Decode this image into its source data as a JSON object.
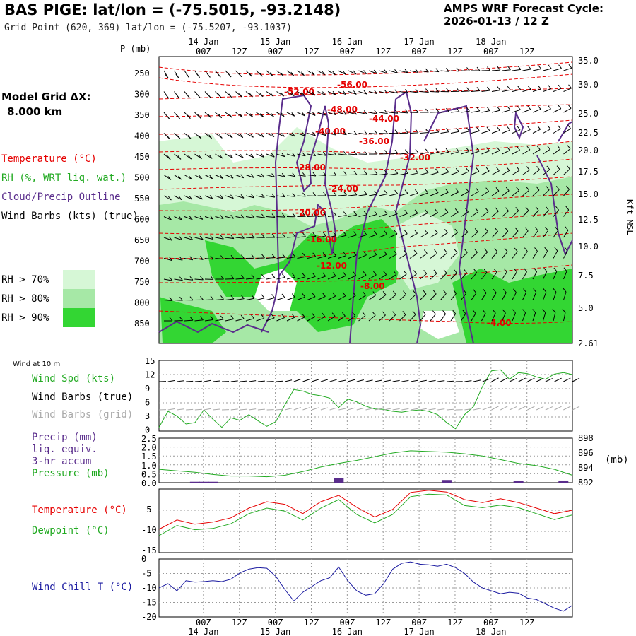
{
  "header": {
    "title": "BAS PIGE:  lat/lon = (-75.5015, -93.2148)",
    "subtitle": "Grid Point (620, 369) lat/lon = (-75.5207, -93.1037)",
    "cycle_line1": "AMPS WRF Forecast Cycle:",
    "cycle_line2": "2026-01-13 / 12  Z"
  },
  "left_panel": {
    "grid_line1": "Model Grid ΔX:",
    "grid_line2": "8.000 km",
    "temperature": "Temperature (°C)",
    "rh": "RH (%, WRT liq. wat.)",
    "cloud": "Cloud/Precip Outline",
    "wind": "Wind Barbs (kts) (true)",
    "rh70": "RH > 70%",
    "rh80": "RH > 80%",
    "rh90": "RH > 90%"
  },
  "colors": {
    "rh70": "#d6f7d6",
    "rh80": "#a6e8a6",
    "rh90": "#33d633",
    "temp": "#e60000",
    "cloud": "#5a2d8c",
    "dew": "#22aa22",
    "chill": "#1a1aa0"
  },
  "time_axis": {
    "date_labels": [
      "14 Jan",
      "15 Jan",
      "16 Jan",
      "17 Jan",
      "18 Jan"
    ],
    "hour_labels": [
      "00Z",
      "12Z",
      "00Z",
      "12Z",
      "00Z",
      "12Z",
      "00Z",
      "12Z",
      "00Z",
      "12Z"
    ]
  },
  "main_panel": {
    "p_label": "P (mb)",
    "right_label": "Kft MSL",
    "pressure_ticks": [
      "250",
      "300",
      "350",
      "400",
      "450",
      "500",
      "550",
      "600",
      "650",
      "700",
      "750",
      "800",
      "850"
    ],
    "height_ticks": [
      "35.0",
      "30.0",
      "25.0",
      "22.5",
      "20.0",
      "17.5",
      "15.0",
      "12.5",
      "10.0",
      "7.5",
      "5.0",
      "2.61"
    ],
    "temp_contour_labels": [
      "-56.00",
      "-52.00",
      "-48.00",
      "-44.00",
      "-40.00",
      "-36.00",
      "-32.00",
      "-28.00",
      "-24.00",
      "-20.00",
      "-16.00",
      "-12.00",
      "-8.00",
      "-4.00"
    ]
  },
  "wind_panel": {
    "title": "Wind at 10 m",
    "spd_label": "Wind Spd (kts)",
    "barbs_true": "Wind Barbs (true)",
    "barbs_grid": "Wind Barbs (grid)",
    "yticks": [
      "15",
      "12",
      "9",
      "6",
      "3",
      "0"
    ]
  },
  "precip_panel": {
    "l1": "Precip (mm)",
    "l2": "liq. equiv.",
    "l3": "3-hr accum",
    "l4": "Pressure (mb)",
    "left_ticks": [
      "2.5",
      "2.0",
      "1.5",
      "1.0",
      "0.5",
      "0.0"
    ],
    "right_ticks": [
      "898",
      "896",
      "894",
      "892"
    ],
    "right_unit": "(mb)"
  },
  "temp_panel": {
    "temp_label": "Temperature (°C)",
    "dew_label": "Dewpoint (°C)",
    "yticks": [
      "-5",
      "-10",
      "-15"
    ]
  },
  "chill_panel": {
    "label": "Wind Chill T (°C)",
    "yticks": [
      "0",
      "-5",
      "-10",
      "-15",
      "-20"
    ]
  },
  "chart_data": [
    {
      "type": "line",
      "title": "Wind at 10 m",
      "x_hours": [
        -12,
        -9,
        -6,
        -3,
        0,
        3,
        6,
        9,
        12,
        15,
        18,
        21,
        24,
        27,
        30,
        33,
        36,
        39,
        42,
        45,
        48,
        51,
        54,
        57,
        60,
        63,
        66,
        69,
        72,
        75,
        78,
        81,
        84,
        87,
        90,
        93,
        96,
        99,
        102,
        105,
        108,
        111,
        114,
        117,
        120,
        123,
        126
      ],
      "series": [
        {
          "name": "Wind Spd (kts)",
          "values": [
            0.8,
            4.2,
            3.2,
            1.5,
            1.8,
            4.5,
            2.5,
            0.8,
            2.8,
            2.3,
            3.5,
            2.2,
            1.0,
            2.0,
            5.5,
            8.8,
            8.5,
            7.8,
            7.5,
            7.0,
            5.0,
            6.8,
            6.2,
            5.3,
            4.7,
            4.6,
            4.2,
            4.0,
            4.3,
            4.5,
            4.2,
            3.5,
            1.8,
            0.5,
            3.5,
            5.2,
            9.5,
            12.8,
            13.0,
            11.0,
            12.4,
            12.2,
            11.5,
            11.0,
            12.1,
            12.4,
            12.0
          ]
        }
      ],
      "ylim": [
        0,
        15
      ]
    },
    {
      "type": "bar",
      "title": "Precip (mm) liq. equiv. 3-hr accum",
      "x_hours": [
        0,
        3,
        6,
        48,
        84,
        108,
        123
      ],
      "values": [
        0.05,
        0.05,
        0.05,
        0.25,
        0.15,
        0.1,
        0.12
      ],
      "ylim": [
        0,
        2.5
      ]
    },
    {
      "type": "line",
      "title": "Pressure (mb)",
      "x_hours": [
        -12,
        -6,
        0,
        6,
        12,
        18,
        24,
        30,
        36,
        42,
        48,
        54,
        60,
        66,
        72,
        78,
        84,
        90,
        96,
        102,
        108,
        114,
        120,
        126
      ],
      "values": [
        893.8,
        893.6,
        893.4,
        893.1,
        892.9,
        892.9,
        892.8,
        893.0,
        893.5,
        894.1,
        894.6,
        895.0,
        895.5,
        896.0,
        896.3,
        896.2,
        896.1,
        895.9,
        895.6,
        895.1,
        894.6,
        894.3,
        893.8,
        893.0
      ],
      "ylim": [
        892,
        898
      ]
    },
    {
      "type": "line",
      "title": "Temperature / Dewpoint",
      "x_hours": [
        -12,
        -6,
        0,
        6,
        12,
        18,
        24,
        30,
        36,
        42,
        48,
        54,
        60,
        66,
        72,
        78,
        84,
        90,
        96,
        102,
        108,
        114,
        120,
        126
      ],
      "series": [
        {
          "name": "Temperature (°C)",
          "values": [
            -9.5,
            -7.3,
            -8.3,
            -7.8,
            -6.8,
            -4.5,
            -3.0,
            -3.6,
            -5.8,
            -3.0,
            -1.5,
            -4.3,
            -6.6,
            -4.8,
            -0.8,
            -0.3,
            -0.7,
            -2.5,
            -3.2,
            -2.3,
            -3.2,
            -4.5,
            -5.8,
            -5.0
          ]
        },
        {
          "name": "Dewpoint (°C)",
          "values": [
            -11.0,
            -8.6,
            -9.6,
            -9.3,
            -8.2,
            -5.8,
            -4.5,
            -5.2,
            -7.3,
            -4.5,
            -2.5,
            -6.0,
            -8.0,
            -6.0,
            -1.8,
            -1.2,
            -1.4,
            -3.9,
            -4.4,
            -3.8,
            -4.4,
            -5.8,
            -7.2,
            -6.1
          ]
        }
      ],
      "ylim": [
        -15,
        0
      ]
    },
    {
      "type": "line",
      "title": "Wind Chill T (°C)",
      "x_hours": [
        -12,
        -9,
        -6,
        -3,
        0,
        3,
        6,
        9,
        12,
        15,
        18,
        21,
        24,
        27,
        30,
        33,
        36,
        39,
        42,
        45,
        48,
        51,
        54,
        57,
        60,
        63,
        66,
        69,
        72,
        75,
        78,
        81,
        84,
        87,
        90,
        93,
        96,
        99,
        102,
        105,
        108,
        111,
        114,
        117,
        120,
        123,
        126
      ],
      "series": [
        {
          "name": "Wind Chill T (°C)",
          "values": [
            -10.0,
            -8.5,
            -11.0,
            -7.5,
            -8.0,
            -7.8,
            -7.5,
            -7.8,
            -7.0,
            -4.8,
            -3.5,
            -3.0,
            -3.2,
            -6.0,
            -10.5,
            -14.5,
            -11.5,
            -9.5,
            -7.5,
            -6.5,
            -2.8,
            -7.5,
            -11.0,
            -12.5,
            -12.0,
            -8.5,
            -3.5,
            -1.5,
            -1.0,
            -1.8,
            -2.0,
            -2.5,
            -1.8,
            -3.0,
            -5.0,
            -8.0,
            -10.0,
            -11.0,
            -12.0,
            -11.5,
            -11.8,
            -13.5,
            -14.0,
            -15.5,
            -17.0,
            -18.0,
            -16.0
          ]
        }
      ],
      "ylim": [
        -20,
        0
      ]
    }
  ]
}
